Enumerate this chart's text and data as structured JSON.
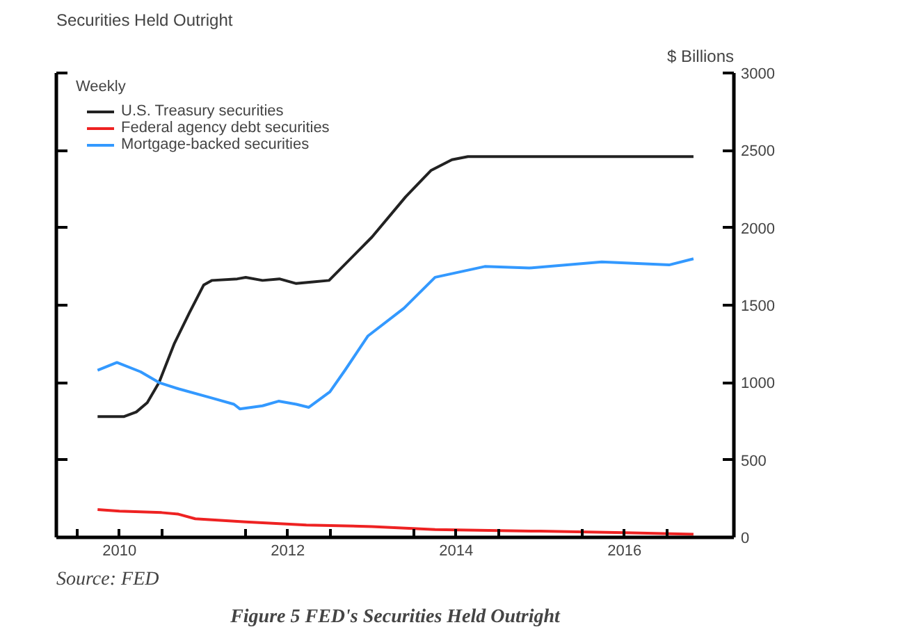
{
  "chart_data": {
    "type": "line",
    "title": "Securities Held Outright",
    "subtitle": "Weekly",
    "ylabel": "$ Billions",
    "annotations": [
      "Source: FED",
      "Figure 5 FED's Securities Held Outright"
    ],
    "xlim": [
      2009.75,
      2017.8
    ],
    "ylim": [
      0,
      3000
    ],
    "yticks": [
      0,
      500,
      1000,
      1500,
      2000,
      2500,
      3000
    ],
    "xticks": [
      {
        "value": 2010,
        "label": null
      },
      {
        "value": 2010.5,
        "label": "2010"
      },
      {
        "value": 2011,
        "label": null
      },
      {
        "value": 2012,
        "label": null
      },
      {
        "value": 2012.5,
        "label": "2012"
      },
      {
        "value": 2013,
        "label": null
      },
      {
        "value": 2014,
        "label": null
      },
      {
        "value": 2014.5,
        "label": "2014"
      },
      {
        "value": 2015,
        "label": null
      },
      {
        "value": 2016,
        "label": null
      },
      {
        "value": 2016.5,
        "label": "2016"
      },
      {
        "value": 2017,
        "label": null
      }
    ],
    "grid": false,
    "legend": "top left",
    "marker": "none",
    "line_style": "solid",
    "series": [
      {
        "name": "U.S. Treasury securities",
        "color": "#222222",
        "x": [
          2010.24,
          2010.55,
          2010.7,
          2010.83,
          2010.97,
          2011.15,
          2011.33,
          2011.5,
          2011.6,
          2011.9,
          2012.0,
          2012.2,
          2012.4,
          2012.6,
          2012.8,
          2012.99,
          2013.5,
          2013.9,
          2014.2,
          2014.45,
          2014.64,
          2015.5,
          2016.5,
          2017.32
        ],
        "values": [
          780,
          780,
          810,
          870,
          1000,
          1250,
          1450,
          1630,
          1660,
          1670,
          1680,
          1660,
          1670,
          1640,
          1650,
          1660,
          1940,
          2200,
          2370,
          2440,
          2460,
          2460,
          2460,
          2460
        ]
      },
      {
        "name": "Federal agency debt securities",
        "color": "#ee2222",
        "x": [
          2010.24,
          2010.5,
          2011.0,
          2011.2,
          2011.4,
          2012.0,
          2012.72,
          2013.5,
          2014.25,
          2015.5,
          2016.5,
          2017.32
        ],
        "values": [
          180,
          170,
          160,
          150,
          120,
          100,
          80,
          70,
          50,
          40,
          30,
          20
        ]
      },
      {
        "name": "Mortgage-backed securities",
        "color": "#3399ff",
        "x": [
          2010.24,
          2010.47,
          2010.75,
          2010.97,
          2011.2,
          2011.6,
          2011.86,
          2011.93,
          2012.2,
          2012.39,
          2012.6,
          2012.75,
          2013.0,
          2013.18,
          2013.45,
          2013.88,
          2014.25,
          2014.84,
          2015.37,
          2016.23,
          2017.03,
          2017.32
        ],
        "values": [
          1080,
          1130,
          1070,
          1000,
          960,
          900,
          860,
          830,
          850,
          880,
          860,
          840,
          940,
          1080,
          1300,
          1480,
          1680,
          1750,
          1740,
          1780,
          1760,
          1800
        ]
      }
    ]
  }
}
